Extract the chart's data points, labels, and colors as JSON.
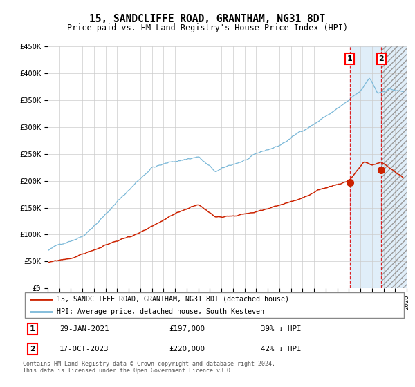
{
  "title": "15, SANDCLIFFE ROAD, GRANTHAM, NG31 8DT",
  "subtitle": "Price paid vs. HM Land Registry's House Price Index (HPI)",
  "ylim": [
    0,
    450000
  ],
  "yticks": [
    0,
    50000,
    100000,
    150000,
    200000,
    250000,
    300000,
    350000,
    400000,
    450000
  ],
  "ytick_labels": [
    "£0",
    "£50K",
    "£100K",
    "£150K",
    "£200K",
    "£250K",
    "£300K",
    "£350K",
    "£400K",
    "£450K"
  ],
  "xtick_years": [
    1995,
    1996,
    1997,
    1998,
    1999,
    2000,
    2001,
    2002,
    2003,
    2004,
    2005,
    2006,
    2007,
    2008,
    2009,
    2010,
    2011,
    2012,
    2013,
    2014,
    2015,
    2016,
    2017,
    2018,
    2019,
    2020,
    2021,
    2022,
    2023,
    2024,
    2025,
    2026
  ],
  "hpi_color": "#7ab8d8",
  "price_color": "#cc2200",
  "bg_color": "#ffffff",
  "grid_color": "#cccccc",
  "sale1_date": 2021.08,
  "sale1_price": 197000,
  "sale2_date": 2023.8,
  "sale2_price": 220000,
  "legend_line1": "15, SANDCLIFFE ROAD, GRANTHAM, NG31 8DT (detached house)",
  "legend_line2": "HPI: Average price, detached house, South Kesteven",
  "annotation1_date": "29-JAN-2021",
  "annotation1_price": "£197,000",
  "annotation1_hpi": "39% ↓ HPI",
  "annotation2_date": "17-OCT-2023",
  "annotation2_price": "£220,000",
  "annotation2_hpi": "42% ↓ HPI",
  "footer1": "Contains HM Land Registry data © Crown copyright and database right 2024.",
  "footer2": "This data is licensed under the Open Government Licence v3.0.",
  "shaded_start": 2021.08,
  "hatched_start": 2023.8,
  "shaded_end": 2026.5
}
